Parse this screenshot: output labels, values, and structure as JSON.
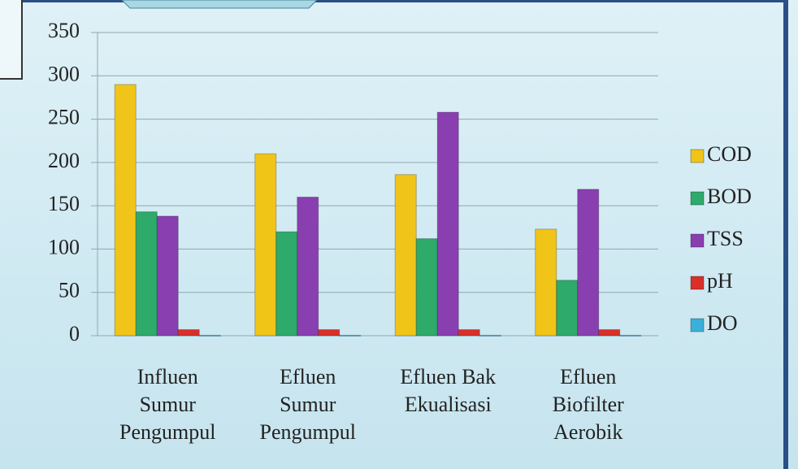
{
  "chart_data": {
    "type": "bar",
    "categories": [
      "Influen\nSumur\nPengumpul",
      "Efluen\nSumur\nPengumpul",
      "Efluen Bak\nEkualisasi",
      "Efluen\nBiofilter\nAerobik"
    ],
    "series": [
      {
        "name": "COD",
        "color": "#f0c419",
        "values": [
          290,
          210,
          186,
          123
        ]
      },
      {
        "name": "BOD",
        "color": "#2eaa6a",
        "values": [
          143,
          120,
          112,
          64
        ]
      },
      {
        "name": "TSS",
        "color": "#8a3fb0",
        "values": [
          138,
          160,
          258,
          169
        ]
      },
      {
        "name": "pH",
        "color": "#d9302a",
        "values": [
          7,
          7,
          7,
          7
        ]
      },
      {
        "name": "DO",
        "color": "#3ab0d8",
        "values": [
          0.5,
          0.5,
          0.5,
          0.5
        ]
      }
    ],
    "ylim": [
      0,
      350
    ],
    "yticks": [
      0,
      50,
      100,
      150,
      200,
      250,
      300,
      350
    ],
    "grid": true,
    "legend": "right"
  }
}
